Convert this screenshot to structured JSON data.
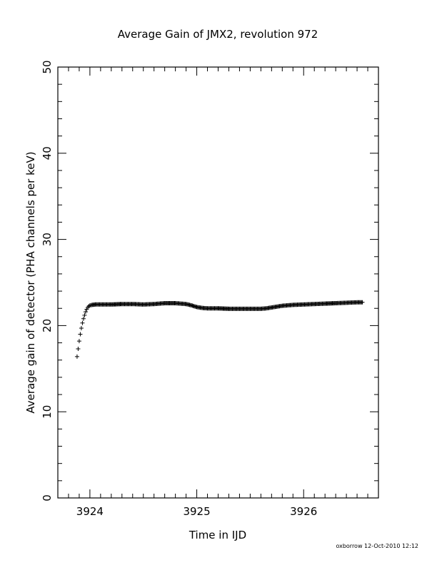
{
  "chart_data": {
    "type": "scatter",
    "title": "Average Gain of JMX2, revolution 972",
    "xlabel": "Time in IJD",
    "ylabel": "Average gain of detector (PHA channels per keV)",
    "xlim": [
      3923.7,
      3926.7
    ],
    "ylim": [
      0,
      50
    ],
    "x_ticks": [
      "3924",
      "3925",
      "3926"
    ],
    "y_ticks": [
      "0",
      "10",
      "20",
      "30",
      "40",
      "50"
    ],
    "marker": "plus",
    "grid": false,
    "color": "#000000",
    "series": [
      {
        "points": [
          [
            3923.88,
            16.4
          ],
          [
            3923.89,
            17.3
          ],
          [
            3923.9,
            18.2
          ],
          [
            3923.91,
            19.0
          ],
          [
            3923.92,
            19.7
          ],
          [
            3923.93,
            20.3
          ],
          [
            3923.94,
            20.8
          ],
          [
            3923.95,
            21.2
          ],
          [
            3923.96,
            21.6
          ],
          [
            3923.97,
            21.9
          ],
          [
            3923.98,
            22.1
          ],
          [
            3923.99,
            22.25
          ],
          [
            3924.0,
            22.35
          ],
          [
            3924.02,
            22.4
          ],
          [
            3924.05,
            22.45
          ],
          [
            3924.1,
            22.45
          ],
          [
            3924.2,
            22.45
          ],
          [
            3924.3,
            22.5
          ],
          [
            3924.4,
            22.5
          ],
          [
            3924.5,
            22.45
          ],
          [
            3924.6,
            22.5
          ],
          [
            3924.7,
            22.6
          ],
          [
            3924.8,
            22.6
          ],
          [
            3924.9,
            22.5
          ],
          [
            3924.95,
            22.35
          ],
          [
            3925.0,
            22.15
          ],
          [
            3925.05,
            22.05
          ],
          [
            3925.1,
            22.0
          ],
          [
            3925.2,
            22.0
          ],
          [
            3925.3,
            21.95
          ],
          [
            3925.4,
            21.95
          ],
          [
            3925.5,
            21.95
          ],
          [
            3925.6,
            21.95
          ],
          [
            3925.65,
            22.0
          ],
          [
            3925.7,
            22.1
          ],
          [
            3925.75,
            22.2
          ],
          [
            3925.8,
            22.3
          ],
          [
            3925.85,
            22.35
          ],
          [
            3925.9,
            22.4
          ],
          [
            3926.0,
            22.45
          ],
          [
            3926.1,
            22.5
          ],
          [
            3926.2,
            22.55
          ],
          [
            3926.3,
            22.6
          ],
          [
            3926.4,
            22.65
          ],
          [
            3926.5,
            22.7
          ],
          [
            3926.55,
            22.7
          ]
        ]
      }
    ]
  },
  "footer": "oxborrow 12-Oct-2010 12:12"
}
